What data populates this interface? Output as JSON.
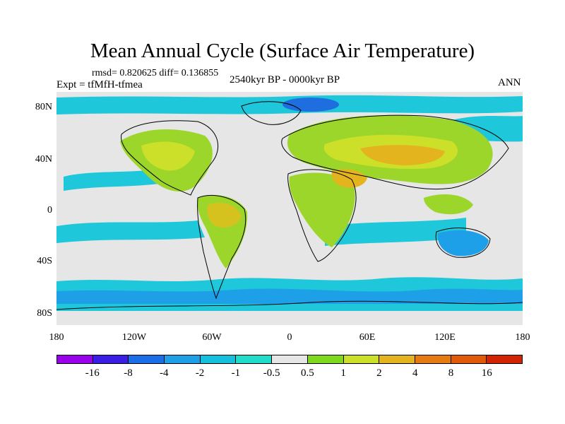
{
  "title": "Mean Annual Cycle (Surface Air Temperature)",
  "stats": "rmsd= 0.820625 diff= 0.136855",
  "experiment": "Expt = tfMfH-tfmea",
  "period": "2540kyr BP - 0000kyr BP",
  "season": "ANN",
  "y_axis_labels": [
    "80N",
    "40N",
    "0",
    "40S",
    "80S"
  ],
  "x_axis_labels": [
    "180",
    "120W",
    "60W",
    "0",
    "60E",
    "120E",
    "180"
  ],
  "colorbar": {
    "labels": [
      "-16",
      "-8",
      "-4",
      "-2",
      "-1",
      "-0.5",
      "0.5",
      "1",
      "2",
      "4",
      "8",
      "16"
    ],
    "colors": [
      "#9a00ea",
      "#3a1ee6",
      "#1a6ee8",
      "#1ea0e8",
      "#14c0dc",
      "#20dcc8",
      "#e6e6e6",
      "#7ed81c",
      "#cce02a",
      "#e4b41e",
      "#e47a10",
      "#e05a08",
      "#d22400"
    ]
  },
  "palette": {
    "land_warm": "#9cd62a",
    "land_hot": "#d6c21e",
    "ocean_cool": "#1ec8da",
    "cold": "#1e6ee0",
    "neutral": "#e6e6e6",
    "coast": "#000000"
  }
}
